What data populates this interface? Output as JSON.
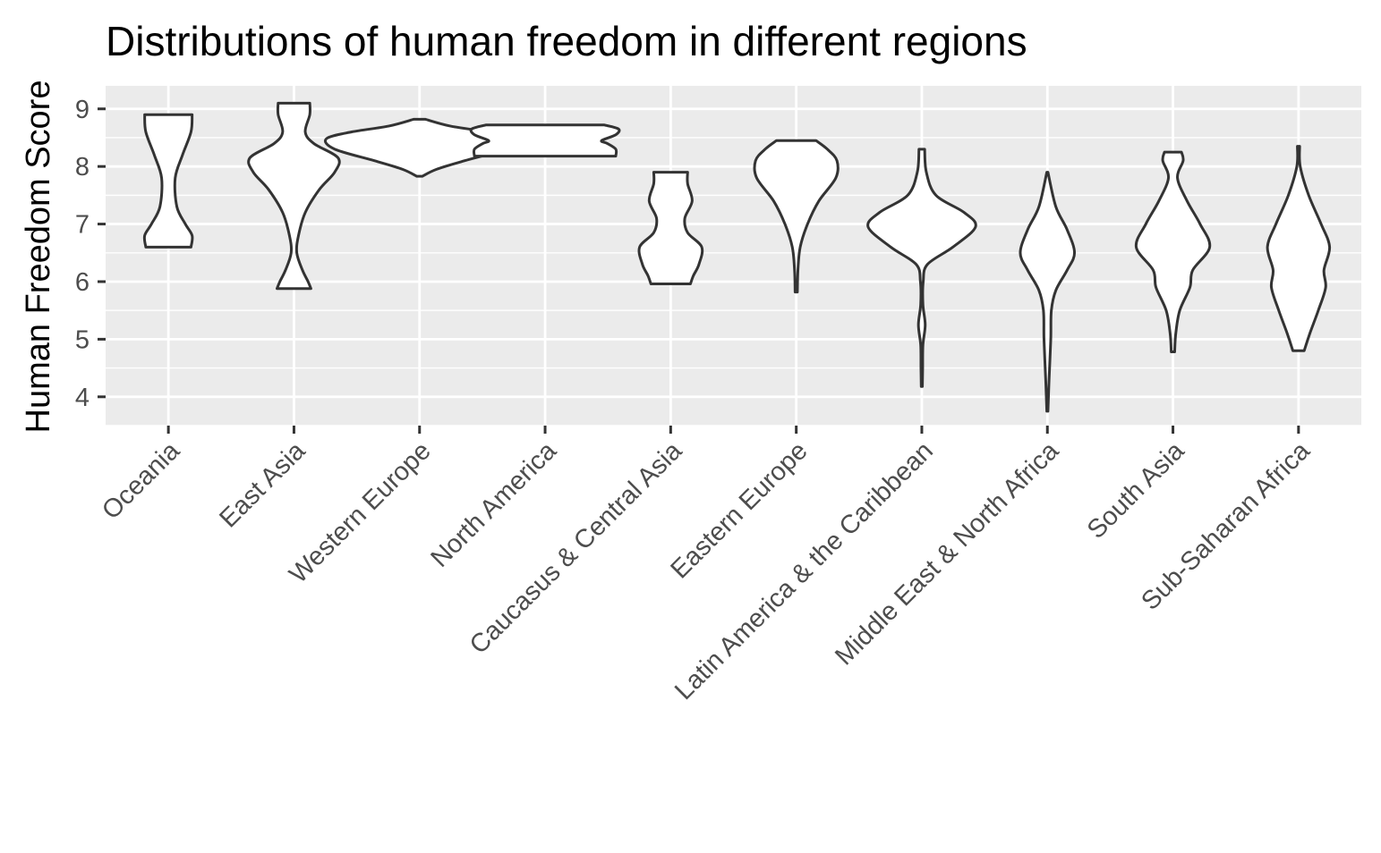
{
  "chart_data": {
    "type": "violin",
    "title": "Distributions of human freedom in different regions",
    "xlabel": "",
    "ylabel": "Human Freedom Score",
    "ylim": [
      3.5,
      9.4
    ],
    "yticks": [
      4,
      5,
      6,
      7,
      8,
      9
    ],
    "grid": true,
    "legend": "none",
    "categories": [
      "Oceania",
      "East Asia",
      "Western Europe",
      "North America",
      "Caucasus & Central Asia",
      "Eastern Europe",
      "Latin America & the Caribbean",
      "Middle East & North Africa",
      "South Asia",
      "Sub-Saharan Africa"
    ],
    "violins": [
      {
        "category": "Oceania",
        "min": 6.6,
        "max": 8.9,
        "profile": [
          [
            6.6,
            0.4
          ],
          [
            6.8,
            0.42
          ],
          [
            7.0,
            0.3
          ],
          [
            7.3,
            0.15
          ],
          [
            7.8,
            0.12
          ],
          [
            8.2,
            0.25
          ],
          [
            8.6,
            0.4
          ],
          [
            8.9,
            0.42
          ]
        ]
      },
      {
        "category": "East Asia",
        "min": 5.88,
        "max": 9.1,
        "profile": [
          [
            5.88,
            0.3
          ],
          [
            6.0,
            0.25
          ],
          [
            6.2,
            0.15
          ],
          [
            6.5,
            0.05
          ],
          [
            6.8,
            0.08
          ],
          [
            7.2,
            0.2
          ],
          [
            7.6,
            0.45
          ],
          [
            7.9,
            0.72
          ],
          [
            8.15,
            0.78
          ],
          [
            8.4,
            0.35
          ],
          [
            8.6,
            0.2
          ],
          [
            8.9,
            0.28
          ],
          [
            9.1,
            0.28
          ]
        ]
      },
      {
        "category": "Western Europe",
        "min": 7.83,
        "max": 8.82,
        "profile": [
          [
            7.83,
            0.05
          ],
          [
            7.95,
            0.3
          ],
          [
            8.1,
            0.8
          ],
          [
            8.3,
            1.5
          ],
          [
            8.48,
            1.65
          ],
          [
            8.6,
            1.2
          ],
          [
            8.7,
            0.55
          ],
          [
            8.82,
            0.1
          ]
        ]
      },
      {
        "category": "North America",
        "min": 8.18,
        "max": 8.72,
        "profile": [
          [
            8.18,
            1.25
          ],
          [
            8.3,
            1.25
          ],
          [
            8.4,
            1.1
          ],
          [
            8.45,
            1.0
          ],
          [
            8.55,
            1.25
          ],
          [
            8.65,
            1.3
          ],
          [
            8.72,
            1.05
          ]
        ]
      },
      {
        "category": "Caucasus & Central Asia",
        "min": 5.96,
        "max": 7.9,
        "profile": [
          [
            5.96,
            0.35
          ],
          [
            6.1,
            0.4
          ],
          [
            6.3,
            0.5
          ],
          [
            6.6,
            0.55
          ],
          [
            6.85,
            0.3
          ],
          [
            7.1,
            0.25
          ],
          [
            7.4,
            0.38
          ],
          [
            7.7,
            0.3
          ],
          [
            7.9,
            0.3
          ]
        ]
      },
      {
        "category": "Eastern Europe",
        "min": 5.82,
        "max": 8.45,
        "profile": [
          [
            5.82,
            0.02
          ],
          [
            6.2,
            0.03
          ],
          [
            6.6,
            0.07
          ],
          [
            7.0,
            0.2
          ],
          [
            7.4,
            0.4
          ],
          [
            7.8,
            0.7
          ],
          [
            8.1,
            0.72
          ],
          [
            8.3,
            0.55
          ],
          [
            8.45,
            0.35
          ]
        ]
      },
      {
        "category": "Latin America & the Caribbean",
        "min": 4.18,
        "max": 8.3,
        "profile": [
          [
            4.18,
            0.01
          ],
          [
            4.5,
            0.015
          ],
          [
            4.9,
            0.02
          ],
          [
            5.25,
            0.06
          ],
          [
            5.6,
            0.02
          ],
          [
            6.0,
            0.025
          ],
          [
            6.3,
            0.1
          ],
          [
            6.6,
            0.55
          ],
          [
            6.95,
            0.95
          ],
          [
            7.2,
            0.75
          ],
          [
            7.5,
            0.25
          ],
          [
            7.9,
            0.08
          ],
          [
            8.3,
            0.05
          ]
        ]
      },
      {
        "category": "Middle East & North Africa",
        "min": 3.75,
        "max": 7.9,
        "profile": [
          [
            3.75,
            0.01
          ],
          [
            4.3,
            0.03
          ],
          [
            5.0,
            0.06
          ],
          [
            5.5,
            0.07
          ],
          [
            5.85,
            0.15
          ],
          [
            6.2,
            0.35
          ],
          [
            6.5,
            0.48
          ],
          [
            6.9,
            0.35
          ],
          [
            7.3,
            0.15
          ],
          [
            7.9,
            0.01
          ]
        ]
      },
      {
        "category": "South Asia",
        "min": 4.78,
        "max": 8.25,
        "profile": [
          [
            4.78,
            0.03
          ],
          [
            5.1,
            0.05
          ],
          [
            5.5,
            0.12
          ],
          [
            5.9,
            0.3
          ],
          [
            6.2,
            0.35
          ],
          [
            6.6,
            0.65
          ],
          [
            7.0,
            0.48
          ],
          [
            7.4,
            0.25
          ],
          [
            7.8,
            0.08
          ],
          [
            8.1,
            0.18
          ],
          [
            8.25,
            0.15
          ]
        ]
      },
      {
        "category": "Sub-Saharan Africa",
        "min": 4.8,
        "max": 8.35,
        "profile": [
          [
            4.8,
            0.1
          ],
          [
            5.1,
            0.2
          ],
          [
            5.5,
            0.35
          ],
          [
            5.9,
            0.48
          ],
          [
            6.2,
            0.45
          ],
          [
            6.6,
            0.55
          ],
          [
            7.0,
            0.4
          ],
          [
            7.5,
            0.18
          ],
          [
            8.0,
            0.03
          ],
          [
            8.35,
            0.02
          ]
        ]
      }
    ]
  }
}
